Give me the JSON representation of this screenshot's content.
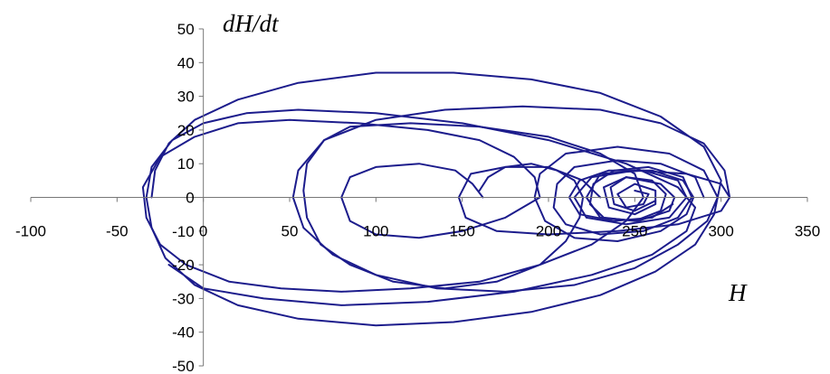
{
  "chart_data": {
    "type": "line",
    "title": "",
    "xlabel": "H",
    "ylabel": "dH/dt",
    "xlim": [
      -100,
      350
    ],
    "ylim": [
      -50,
      50
    ],
    "x_ticks": [
      -100,
      -50,
      0,
      50,
      100,
      150,
      200,
      250,
      300,
      350
    ],
    "y_ticks": [
      -50,
      -40,
      -30,
      -20,
      -10,
      0,
      10,
      20,
      30,
      40,
      50
    ],
    "grid": false,
    "legend": "none",
    "colors": {
      "series": "#1c1c8c",
      "axis": "#777777"
    },
    "series": [
      {
        "points": [
          [
            162,
            0
          ],
          [
            156,
            4
          ],
          [
            146,
            8
          ],
          [
            125,
            10
          ],
          [
            100,
            9
          ],
          [
            85,
            6
          ],
          [
            80,
            0
          ],
          [
            85,
            -7
          ],
          [
            100,
            -11
          ],
          [
            125,
            -12
          ],
          [
            150,
            -10
          ],
          [
            175,
            -6
          ],
          [
            195,
            0
          ],
          [
            192,
            6
          ],
          [
            180,
            12
          ],
          [
            160,
            17
          ],
          [
            130,
            20
          ],
          [
            90,
            22
          ],
          [
            50,
            23
          ],
          [
            20,
            22
          ],
          [
            -5,
            18
          ],
          [
            -25,
            12
          ],
          [
            -35,
            3
          ],
          [
            -33,
            -6
          ],
          [
            -25,
            -14
          ],
          [
            -10,
            -20
          ],
          [
            15,
            -25
          ],
          [
            45,
            -27
          ],
          [
            80,
            -28
          ],
          [
            120,
            -27
          ],
          [
            160,
            -25
          ],
          [
            195,
            -20
          ],
          [
            225,
            -14
          ],
          [
            245,
            -7
          ],
          [
            255,
            0
          ],
          [
            250,
            7
          ],
          [
            230,
            13
          ],
          [
            200,
            18
          ],
          [
            160,
            21
          ],
          [
            120,
            22
          ],
          [
            85,
            21
          ],
          [
            70,
            17
          ],
          [
            60,
            10
          ],
          [
            58,
            2
          ],
          [
            60,
            -6
          ],
          [
            68,
            -14
          ],
          [
            85,
            -20
          ],
          [
            110,
            -25
          ],
          [
            140,
            -27
          ],
          [
            170,
            -25
          ],
          [
            195,
            -20
          ],
          [
            210,
            -13
          ],
          [
            218,
            -6
          ],
          [
            220,
            0
          ],
          [
            215,
            5
          ],
          [
            205,
            8
          ],
          [
            190,
            10
          ],
          [
            175,
            9
          ],
          [
            165,
            6
          ],
          [
            160,
            2
          ]
        ]
      },
      {
        "points": [
          [
            230,
            0
          ],
          [
            220,
            5
          ],
          [
            200,
            9
          ],
          [
            175,
            9
          ],
          [
            155,
            7
          ],
          [
            148,
            0
          ],
          [
            152,
            -6
          ],
          [
            170,
            -10
          ],
          [
            200,
            -11
          ],
          [
            240,
            -10
          ],
          [
            275,
            -8
          ],
          [
            300,
            -4
          ],
          [
            305,
            0
          ],
          [
            300,
            4
          ],
          [
            280,
            7
          ],
          [
            250,
            8
          ],
          [
            225,
            6
          ],
          [
            215,
            0
          ],
          [
            222,
            -6
          ],
          [
            245,
            -8
          ],
          [
            270,
            -6
          ],
          [
            280,
            0
          ],
          [
            275,
            5
          ],
          [
            255,
            8
          ],
          [
            230,
            7
          ],
          [
            222,
            0
          ],
          [
            230,
            -6
          ],
          [
            252,
            -7
          ],
          [
            270,
            -4
          ],
          [
            273,
            0
          ],
          [
            265,
            4
          ],
          [
            245,
            6
          ],
          [
            232,
            3
          ],
          [
            235,
            -3
          ],
          [
            250,
            -5
          ],
          [
            262,
            -2
          ],
          [
            262,
            2
          ],
          [
            250,
            4
          ],
          [
            240,
            1
          ],
          [
            245,
            -3
          ],
          [
            255,
            -2
          ],
          [
            258,
            1
          ],
          [
            250,
            2
          ]
        ]
      },
      {
        "points": [
          [
            305,
            0
          ],
          [
            302,
            8
          ],
          [
            290,
            16
          ],
          [
            265,
            22
          ],
          [
            230,
            26
          ],
          [
            185,
            27
          ],
          [
            140,
            26
          ],
          [
            100,
            23
          ],
          [
            70,
            17
          ],
          [
            55,
            8
          ],
          [
            52,
            0
          ],
          [
            58,
            -9
          ],
          [
            75,
            -17
          ],
          [
            100,
            -23
          ],
          [
            135,
            -27
          ],
          [
            175,
            -28
          ],
          [
            215,
            -26
          ],
          [
            250,
            -21
          ],
          [
            275,
            -14
          ],
          [
            292,
            -7
          ],
          [
            298,
            0
          ],
          [
            290,
            8
          ],
          [
            270,
            13
          ],
          [
            240,
            15
          ],
          [
            210,
            13
          ],
          [
            195,
            7
          ],
          [
            192,
            0
          ],
          [
            198,
            -7
          ],
          [
            215,
            -12
          ],
          [
            240,
            -13
          ],
          [
            265,
            -10
          ],
          [
            280,
            -5
          ],
          [
            284,
            0
          ],
          [
            278,
            5
          ],
          [
            260,
            8
          ],
          [
            235,
            8
          ],
          [
            218,
            5
          ],
          [
            212,
            0
          ],
          [
            218,
            -5
          ],
          [
            238,
            -7
          ],
          [
            260,
            -6
          ],
          [
            272,
            -2
          ]
        ]
      },
      {
        "points": [
          [
            -30,
            0
          ],
          [
            -28,
            8
          ],
          [
            -20,
            16
          ],
          [
            -5,
            23
          ],
          [
            20,
            29
          ],
          [
            55,
            34
          ],
          [
            100,
            37
          ],
          [
            145,
            37
          ],
          [
            190,
            35
          ],
          [
            230,
            31
          ],
          [
            265,
            24
          ],
          [
            290,
            15
          ],
          [
            300,
            5
          ],
          [
            296,
            -5
          ],
          [
            285,
            -14
          ],
          [
            262,
            -22
          ],
          [
            230,
            -29
          ],
          [
            190,
            -34
          ],
          [
            145,
            -37
          ],
          [
            100,
            -38
          ],
          [
            55,
            -36
          ],
          [
            20,
            -32
          ],
          [
            -5,
            -26
          ],
          [
            -22,
            -18
          ],
          [
            -30,
            -9
          ],
          [
            -33,
            0
          ],
          [
            -30,
            9
          ],
          [
            -18,
            17
          ],
          [
            0,
            22
          ],
          [
            25,
            25
          ],
          [
            55,
            26
          ],
          [
            100,
            25
          ],
          [
            150,
            22
          ],
          [
            200,
            17
          ],
          [
            245,
            10
          ],
          [
            275,
            3
          ],
          [
            285,
            -3
          ],
          [
            280,
            -10
          ],
          [
            260,
            -17
          ],
          [
            225,
            -23
          ],
          [
            180,
            -28
          ],
          [
            130,
            -31
          ],
          [
            80,
            -32
          ],
          [
            35,
            -30
          ],
          [
            0,
            -27
          ],
          [
            -20,
            -20
          ]
        ]
      },
      {
        "points": [
          [
            290,
            0
          ],
          [
            285,
            6
          ],
          [
            265,
            10
          ],
          [
            240,
            11
          ],
          [
            215,
            9
          ],
          [
            205,
            4
          ],
          [
            203,
            -3
          ],
          [
            210,
            -8
          ],
          [
            230,
            -11
          ],
          [
            255,
            -10
          ],
          [
            275,
            -6
          ],
          [
            283,
            0
          ],
          [
            278,
            6
          ],
          [
            258,
            9
          ],
          [
            238,
            8
          ],
          [
            226,
            4
          ],
          [
            224,
            -2
          ],
          [
            232,
            -6
          ],
          [
            250,
            -7
          ],
          [
            265,
            -4
          ],
          [
            268,
            1
          ],
          [
            260,
            5
          ],
          [
            245,
            6
          ],
          [
            236,
            3
          ],
          [
            238,
            -2
          ],
          [
            250,
            -4
          ],
          [
            262,
            -1
          ]
        ]
      }
    ]
  }
}
